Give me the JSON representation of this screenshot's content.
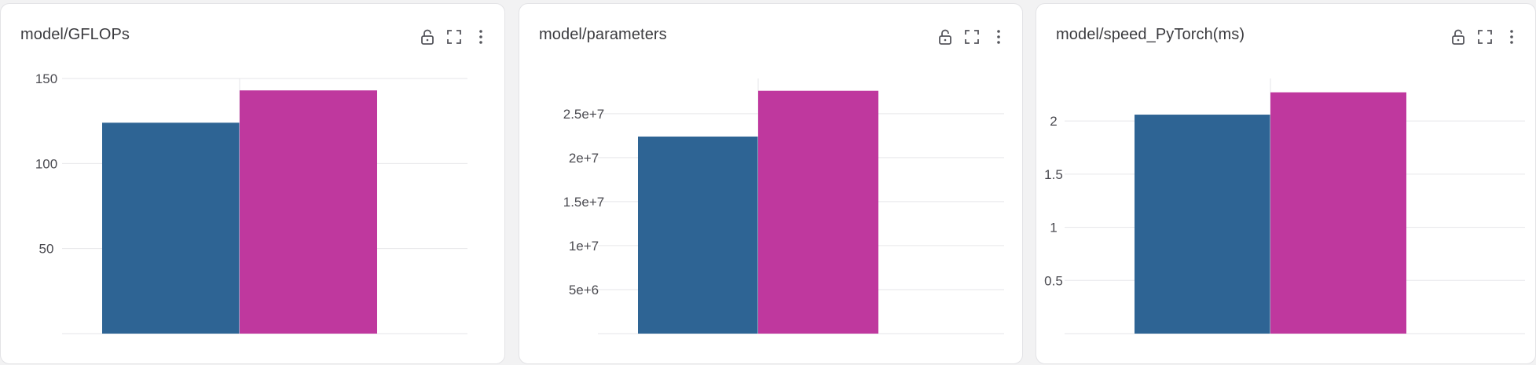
{
  "colors": {
    "series": [
      "#2e6494",
      "#bf389e"
    ],
    "grid": "#e6e6ea",
    "panel_bg": "#ffffff",
    "page_bg": "#f2f2f3",
    "icon": "#55565c"
  },
  "icons": {
    "lock": "unlock-icon",
    "expand": "fullscreen-icon",
    "menu": "kebab-menu-icon"
  },
  "chart_data": [
    {
      "type": "bar",
      "title": "model/GFLOPs",
      "categories": [
        "",
        ""
      ],
      "values": [
        124,
        143
      ],
      "ylim": [
        0,
        150
      ],
      "yticks": [
        50,
        100,
        150
      ],
      "ytick_labels": [
        "50",
        "100",
        "150"
      ],
      "grid": true,
      "legend": "none"
    },
    {
      "type": "bar",
      "title": "model/parameters",
      "categories": [
        "",
        ""
      ],
      "values": [
        22400000,
        27600000
      ],
      "ylim": [
        0,
        29000000
      ],
      "yticks": [
        5000000,
        10000000,
        15000000,
        20000000,
        25000000
      ],
      "ytick_labels": [
        "5e+6",
        "1e+7",
        "1.5e+7",
        "2e+7",
        "2.5e+7"
      ],
      "grid": true,
      "legend": "none"
    },
    {
      "type": "bar",
      "title": "model/speed_PyTorch(ms)",
      "categories": [
        "",
        ""
      ],
      "values": [
        2.06,
        2.27
      ],
      "ylim": [
        0,
        2.4
      ],
      "yticks": [
        0.5,
        1,
        1.5,
        2
      ],
      "ytick_labels": [
        "0.5",
        "1",
        "1.5",
        "2"
      ],
      "grid": true,
      "legend": "none"
    }
  ]
}
